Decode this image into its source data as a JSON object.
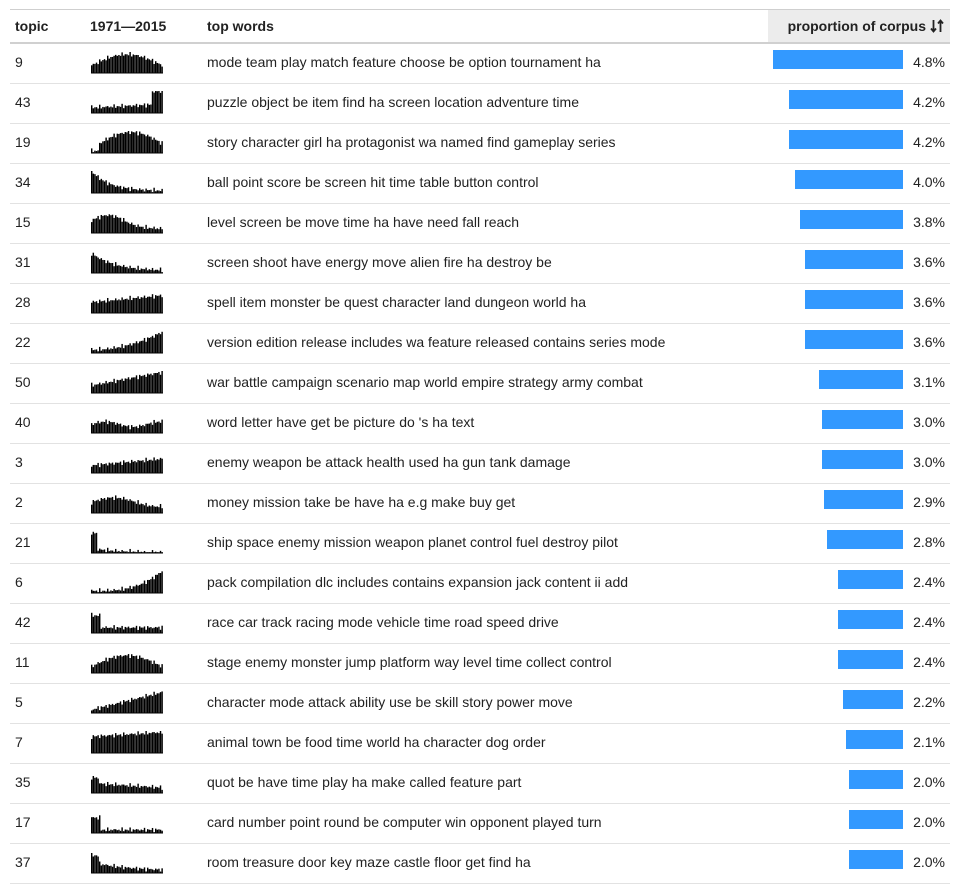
{
  "header": {
    "topic": "topic",
    "years": "1971—2015",
    "words": "top words",
    "proportion": "proportion of corpus",
    "sort_icon": "sort-updown-icon"
  },
  "bar_color": "#3399ff",
  "max_proportion": 4.8,
  "rows": [
    {
      "topic": "9",
      "words": "mode team play match feature choose be option tournament ha",
      "value": 4.8,
      "pct": "4.8%"
    },
    {
      "topic": "43",
      "words": "puzzle object be item find ha screen location adventure time",
      "value": 4.2,
      "pct": "4.2%"
    },
    {
      "topic": "19",
      "words": "story character girl ha protagonist wa named find gameplay series",
      "value": 4.2,
      "pct": "4.2%"
    },
    {
      "topic": "34",
      "words": "ball point score be screen hit time table button control",
      "value": 4.0,
      "pct": "4.0%"
    },
    {
      "topic": "15",
      "words": "level screen be move time ha have need fall reach",
      "value": 3.8,
      "pct": "3.8%"
    },
    {
      "topic": "31",
      "words": "screen shoot have energy move alien fire ha destroy be",
      "value": 3.6,
      "pct": "3.6%"
    },
    {
      "topic": "28",
      "words": "spell item monster be quest character land dungeon world ha",
      "value": 3.6,
      "pct": "3.6%"
    },
    {
      "topic": "22",
      "words": "version edition release includes wa feature released contains series mode",
      "value": 3.6,
      "pct": "3.6%"
    },
    {
      "topic": "50",
      "words": "war battle campaign scenario map world empire strategy army combat",
      "value": 3.1,
      "pct": "3.1%"
    },
    {
      "topic": "40",
      "words": "word letter have get be picture do 's ha text",
      "value": 3.0,
      "pct": "3.0%"
    },
    {
      "topic": "3",
      "words": "enemy weapon be attack health used ha gun tank damage",
      "value": 3.0,
      "pct": "3.0%"
    },
    {
      "topic": "2",
      "words": "money mission take be have ha e.g make buy get",
      "value": 2.9,
      "pct": "2.9%"
    },
    {
      "topic": "21",
      "words": "ship space enemy mission weapon planet control fuel destroy pilot",
      "value": 2.8,
      "pct": "2.8%"
    },
    {
      "topic": "6",
      "words": "pack compilation dlc includes contains expansion jack content ii add",
      "value": 2.4,
      "pct": "2.4%"
    },
    {
      "topic": "42",
      "words": "race car track racing mode vehicle time road speed drive",
      "value": 2.4,
      "pct": "2.4%"
    },
    {
      "topic": "11",
      "words": "stage enemy monster jump platform way level time collect control",
      "value": 2.4,
      "pct": "2.4%"
    },
    {
      "topic": "5",
      "words": "character mode attack ability use be skill story power move",
      "value": 2.2,
      "pct": "2.2%"
    },
    {
      "topic": "7",
      "words": "animal town be food time world ha character dog order",
      "value": 2.1,
      "pct": "2.1%"
    },
    {
      "topic": "35",
      "words": "quot be have time play ha make called feature part",
      "value": 2.0,
      "pct": "2.0%"
    },
    {
      "topic": "17",
      "words": "card number point round be computer win opponent played turn",
      "value": 2.0,
      "pct": "2.0%"
    },
    {
      "topic": "37",
      "words": "room treasure door key maze castle floor get find ha",
      "value": 2.0,
      "pct": "2.0%"
    }
  ]
}
